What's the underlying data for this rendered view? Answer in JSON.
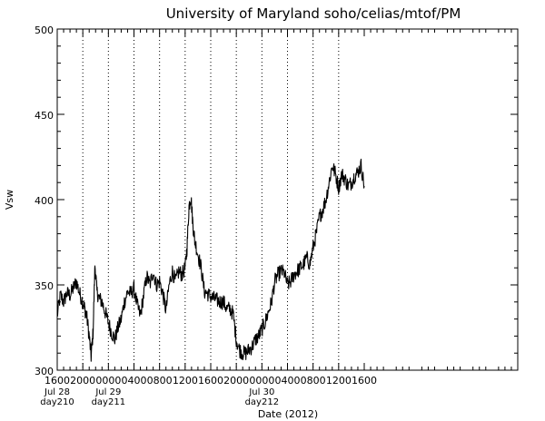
{
  "chart_data": {
    "type": "line",
    "title": "University of Maryland  soho/celias/mtof/PM",
    "xlabel": "Date (2012)",
    "ylabel": "Vsw",
    "ylim": [
      300,
      500
    ],
    "yticks": [
      300,
      350,
      400,
      450,
      500
    ],
    "xlim_hours": [
      0,
      72
    ],
    "xticks": [
      {
        "h": 0,
        "label": "1600"
      },
      {
        "h": 4,
        "label": "2000"
      },
      {
        "h": 8,
        "label": "0000"
      },
      {
        "h": 12,
        "label": "0400"
      },
      {
        "h": 16,
        "label": "0800"
      },
      {
        "h": 20,
        "label": "1200"
      },
      {
        "h": 24,
        "label": "1600"
      },
      {
        "h": 28,
        "label": "2000"
      },
      {
        "h": 32,
        "label": "0000"
      },
      {
        "h": 36,
        "label": "0400"
      },
      {
        "h": 40,
        "label": "0800"
      },
      {
        "h": 44,
        "label": "1200"
      },
      {
        "h": 48,
        "label": "1600"
      }
    ],
    "day_labels": [
      {
        "h": 0,
        "date": "Jul 28",
        "doy": "day210"
      },
      {
        "h": 8,
        "date": "Jul 29",
        "doy": "day211"
      },
      {
        "h": 32,
        "date": "Jul 30",
        "doy": "day212"
      }
    ],
    "gridlines_hours": [
      4,
      8,
      12,
      16,
      20,
      24,
      28,
      32,
      36,
      40,
      44
    ],
    "series": [
      {
        "x": [
          0,
          0.5,
          1,
          1.5,
          2,
          2.5,
          3,
          3.5,
          4,
          4.3,
          4.6,
          5,
          5.3,
          5.6,
          5.9,
          6.2,
          6.6,
          7,
          7.5,
          8,
          8.5,
          9,
          9.5,
          10,
          10.5,
          11,
          11.5,
          12,
          12.5,
          13,
          13.5,
          14,
          14.5,
          15,
          15.5,
          16,
          16.5,
          17,
          17.5,
          18,
          18.5,
          19,
          19.5,
          20,
          20.3,
          20.6,
          20.9,
          21.2,
          21.5,
          22,
          22.5,
          23,
          23.5,
          24,
          24.5,
          25,
          25.5,
          26,
          26.5,
          27,
          27.5,
          28,
          28.5,
          29,
          29.5,
          30,
          30.5,
          31,
          31.5,
          32,
          32.5,
          33,
          33.5,
          34,
          34.5,
          35,
          35.5,
          36,
          36.5,
          37,
          37.5,
          38,
          38.5,
          39,
          39.5,
          40,
          40.5,
          41,
          41.5,
          42,
          42.5,
          43,
          43.5,
          44,
          44.5,
          45,
          45.5,
          46,
          46.5,
          47,
          47.5,
          48
        ],
        "y": [
          332,
          344,
          340,
          345,
          344,
          348,
          352,
          345,
          340,
          336,
          332,
          320,
          308,
          322,
          362,
          346,
          342,
          340,
          334,
          328,
          322,
          318,
          325,
          330,
          340,
          346,
          345,
          348,
          338,
          332,
          344,
          355,
          350,
          358,
          350,
          352,
          345,
          335,
          350,
          358,
          352,
          358,
          356,
          360,
          372,
          396,
          402,
          386,
          376,
          368,
          360,
          346,
          345,
          343,
          342,
          341,
          340,
          340,
          336,
          336,
          333,
          318,
          312,
          310,
          310,
          312,
          314,
          318,
          320,
          324,
          328,
          334,
          340,
          352,
          356,
          358,
          357,
          350,
          352,
          356,
          358,
          360,
          362,
          366,
          362,
          372,
          380,
          390,
          394,
          400,
          410,
          420,
          415,
          407,
          415,
          412,
          408,
          410,
          414,
          416,
          420,
          408
        ]
      }
    ]
  }
}
